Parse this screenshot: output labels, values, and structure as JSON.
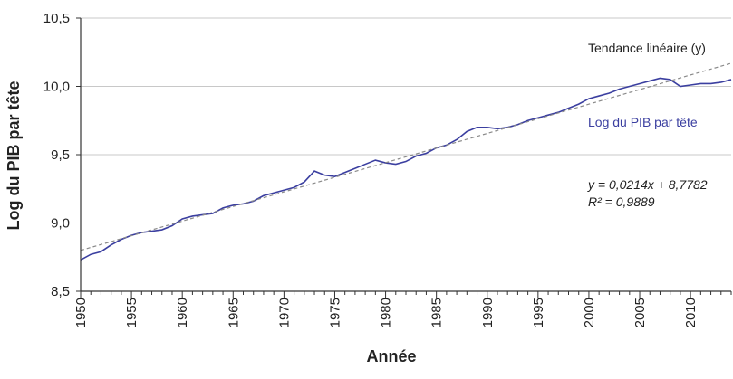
{
  "chart_data": {
    "type": "line",
    "xlabel": "Année",
    "ylabel": "Log du PIB par tête",
    "xlim": [
      1950,
      2014
    ],
    "ylim": [
      8.5,
      10.5
    ],
    "grid": "horizontal",
    "x_ticks": [
      "1950",
      "1955",
      "1960",
      "1965",
      "1970",
      "1975",
      "1980",
      "1985",
      "1990",
      "1995",
      "2000",
      "2005",
      "2010"
    ],
    "y_ticks": [
      "8,5",
      "9,0",
      "9,5",
      "10,0",
      "10,5"
    ],
    "series": [
      {
        "name": "Log du PIB par tête",
        "color": "#3b3fa0",
        "style": "solid",
        "x": [
          1950,
          1951,
          1952,
          1953,
          1954,
          1955,
          1956,
          1957,
          1958,
          1959,
          1960,
          1961,
          1962,
          1963,
          1964,
          1965,
          1966,
          1967,
          1968,
          1969,
          1970,
          1971,
          1972,
          1973,
          1974,
          1975,
          1976,
          1977,
          1978,
          1979,
          1980,
          1981,
          1982,
          1983,
          1984,
          1985,
          1986,
          1987,
          1988,
          1989,
          1990,
          1991,
          1992,
          1993,
          1994,
          1995,
          1996,
          1997,
          1998,
          1999,
          2000,
          2001,
          2002,
          2003,
          2004,
          2005,
          2006,
          2007,
          2008,
          2009,
          2010,
          2011,
          2012,
          2013,
          2014
        ],
        "y": [
          8.73,
          8.77,
          8.79,
          8.84,
          8.88,
          8.91,
          8.93,
          8.94,
          8.95,
          8.98,
          9.03,
          9.05,
          9.06,
          9.07,
          9.11,
          9.13,
          9.14,
          9.16,
          9.2,
          9.22,
          9.24,
          9.26,
          9.3,
          9.38,
          9.35,
          9.34,
          9.37,
          9.4,
          9.43,
          9.46,
          9.44,
          9.43,
          9.45,
          9.49,
          9.51,
          9.55,
          9.57,
          9.61,
          9.67,
          9.7,
          9.7,
          9.69,
          9.7,
          9.72,
          9.75,
          9.77,
          9.79,
          9.81,
          9.84,
          9.87,
          9.91,
          9.93,
          9.95,
          9.98,
          10.0,
          10.02,
          10.04,
          10.06,
          10.05,
          10.0,
          10.01,
          10.02,
          10.02,
          10.03,
          10.05
        ]
      },
      {
        "name": "Tendance linéaire (y)",
        "color": "#8a8a8a",
        "style": "dashed",
        "x": [
          1950,
          2014
        ],
        "y": [
          8.7996,
          10.1692
        ]
      }
    ],
    "annotations": {
      "trend_label": "Tendance linéaire (y)",
      "series_label": "Log du PIB par tête",
      "equation": "y = 0,0214x + 8,7782",
      "r_squared": "R² = 0,9889"
    }
  }
}
